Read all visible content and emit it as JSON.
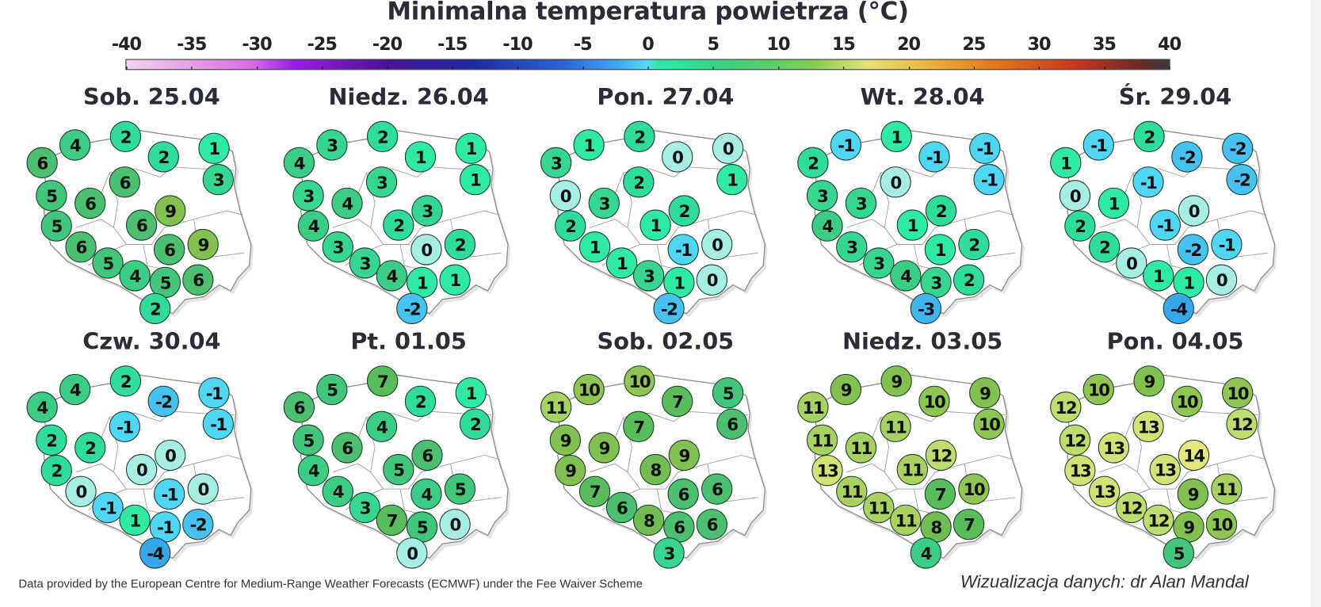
{
  "title": "Minimalna temperatura powietrza (°C)",
  "scale": {
    "ticks": [
      "-40",
      "-35",
      "-30",
      "-25",
      "-20",
      "-15",
      "-10",
      "-5",
      "0",
      "5",
      "10",
      "15",
      "20",
      "25",
      "30",
      "35",
      "40"
    ],
    "min": -40,
    "max": 40
  },
  "footer": {
    "source": "Data provided by the European Centre for Medium-Range Weather Forecasts (ECMWF) under the Fee Waiver Scheme",
    "credit": "Wizualizacja danych: dr Alan Mandal"
  },
  "panels": [
    {
      "label": "Sob. 25.04",
      "values": [
        6,
        4,
        2,
        2,
        1,
        3,
        5,
        6,
        6,
        9,
        5,
        6,
        6,
        9,
        6,
        5,
        4,
        5,
        6,
        2
      ]
    },
    {
      "label": "Niedz. 26.04",
      "values": [
        4,
        3,
        2,
        1,
        1,
        1,
        3,
        4,
        3,
        3,
        4,
        2,
        3,
        2,
        0,
        3,
        4,
        1,
        1,
        -2
      ]
    },
    {
      "label": "Pon. 27.04",
      "values": [
        3,
        1,
        2,
        0,
        0,
        1,
        0,
        3,
        2,
        2,
        2,
        1,
        1,
        0,
        -1,
        1,
        3,
        1,
        0,
        -2
      ]
    },
    {
      "label": "Wt. 28.04",
      "values": [
        2,
        -1,
        1,
        -1,
        -1,
        -1,
        3,
        3,
        0,
        2,
        4,
        1,
        3,
        2,
        1,
        3,
        4,
        3,
        2,
        -3
      ]
    },
    {
      "label": "Śr. 29.04",
      "values": [
        1,
        -1,
        2,
        -2,
        -2,
        -2,
        0,
        1,
        -1,
        0,
        2,
        -1,
        2,
        -1,
        -2,
        0,
        1,
        1,
        0,
        -4
      ]
    },
    {
      "label": "Czw. 30.04",
      "values": [
        4,
        4,
        2,
        -2,
        -1,
        -1,
        2,
        2,
        -1,
        0,
        2,
        0,
        0,
        0,
        -1,
        -1,
        1,
        -1,
        -2,
        -4
      ]
    },
    {
      "label": "Pt. 01.05",
      "values": [
        6,
        5,
        7,
        2,
        1,
        2,
        5,
        6,
        4,
        6,
        4,
        5,
        4,
        5,
        4,
        3,
        7,
        5,
        0,
        0
      ]
    },
    {
      "label": "Sob. 02.05",
      "values": [
        11,
        10,
        10,
        7,
        5,
        6,
        9,
        9,
        7,
        9,
        9,
        8,
        7,
        6,
        6,
        6,
        8,
        6,
        6,
        3
      ]
    },
    {
      "label": "Niedz. 03.05",
      "values": [
        11,
        9,
        9,
        10,
        9,
        10,
        11,
        11,
        11,
        12,
        13,
        11,
        11,
        10,
        7,
        11,
        11,
        8,
        7,
        4
      ]
    },
    {
      "label": "Pon. 04.05",
      "values": [
        12,
        10,
        9,
        10,
        10,
        12,
        12,
        13,
        13,
        14,
        13,
        13,
        13,
        11,
        9,
        12,
        12,
        9,
        10,
        5
      ]
    }
  ],
  "chart_data": {
    "type": "map",
    "title": "Minimalna temperatura powietrza (°C)",
    "colorbar": {
      "min": -40,
      "max": 40,
      "step": 5
    },
    "location_order": [
      "far-NW",
      "NW",
      "N-coast",
      "N-east",
      "NE",
      "E-upper",
      "W",
      "W-inner",
      "center-north",
      "center-east",
      "SW",
      "center",
      "SW-2",
      "E",
      "S-center-east",
      "S-W",
      "S",
      "S-2",
      "SE",
      "far-S"
    ],
    "days": [
      "Sob. 25.04",
      "Niedz. 26.04",
      "Pon. 27.04",
      "Wt. 28.04",
      "Śr. 29.04",
      "Czw. 30.04",
      "Pt. 01.05",
      "Sob. 02.05",
      "Niedz. 03.05",
      "Pon. 04.05"
    ]
  }
}
